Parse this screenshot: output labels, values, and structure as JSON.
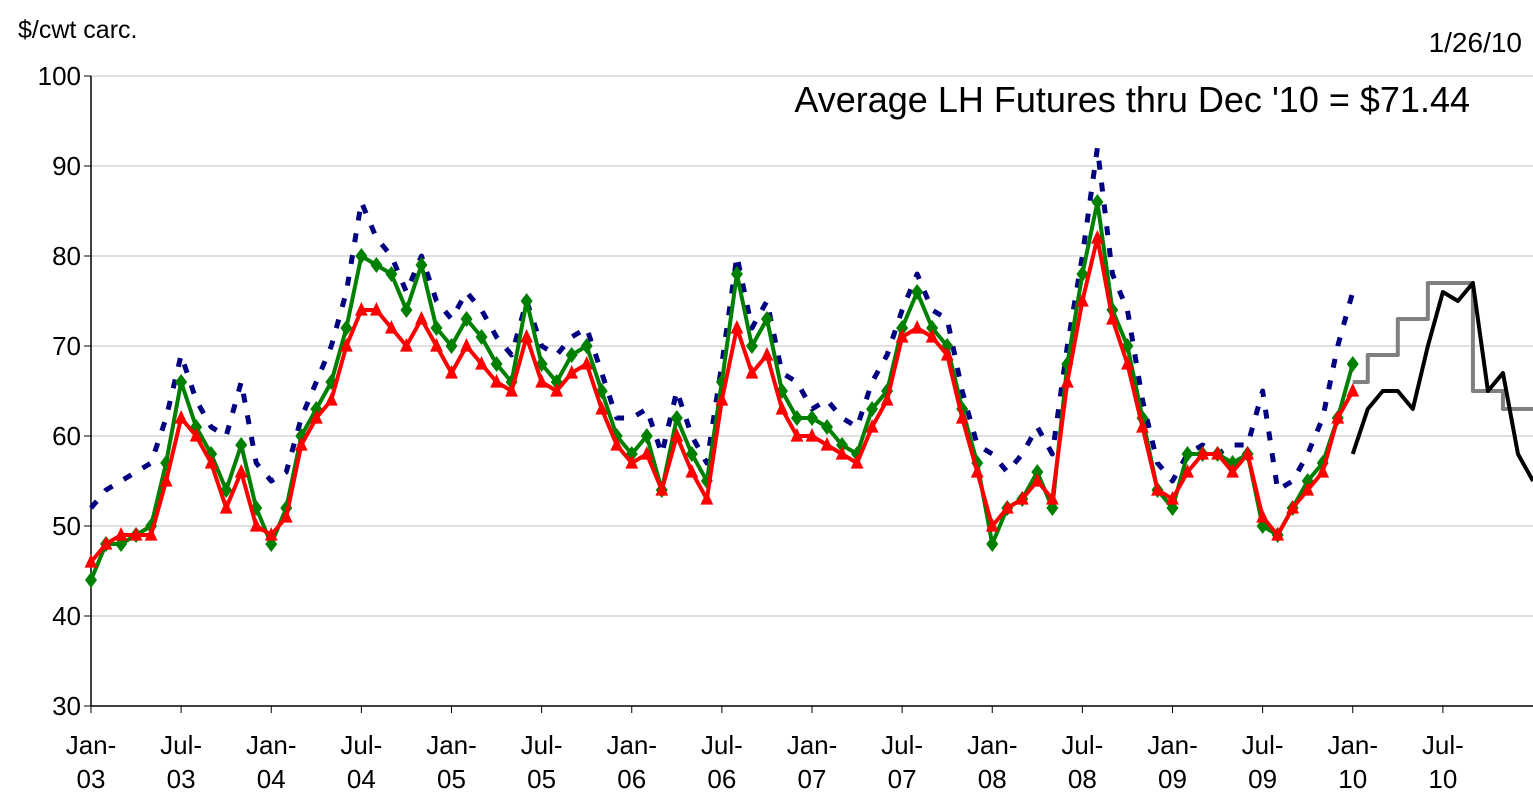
{
  "chart_data": {
    "type": "line",
    "ylabel": "$/cwt carc.",
    "date": "1/26/10",
    "annotation": "Average LH Futures thru Dec '10 = $71.44",
    "categories": [
      "Jan-03",
      null,
      null,
      null,
      null,
      null,
      "Jul-03",
      null,
      null,
      null,
      null,
      null,
      "Jan-04",
      null,
      null,
      null,
      null,
      null,
      "Jul-04",
      null,
      null,
      null,
      null,
      null,
      "Jan-05",
      null,
      null,
      null,
      null,
      null,
      "Jul-05",
      null,
      null,
      null,
      null,
      null,
      "Jan-06",
      null,
      null,
      null,
      null,
      null,
      "Jul-06",
      null,
      null,
      null,
      null,
      null,
      "Jan-07",
      null,
      null,
      null,
      null,
      null,
      "Jul-07",
      null,
      null,
      null,
      null,
      null,
      "Jan-08",
      null,
      null,
      null,
      null,
      null,
      "Jul-08",
      null,
      null,
      null,
      null,
      null,
      "Jan-09",
      null,
      null,
      null,
      null,
      null,
      "Jul-09",
      null,
      null,
      null,
      null,
      null,
      "Jan-10",
      null,
      null,
      null,
      null,
      null,
      "Jul-10",
      null,
      null,
      null,
      null,
      null,
      null
    ],
    "ylim": [
      30,
      100
    ],
    "yticks": [
      30,
      40,
      50,
      60,
      70,
      80,
      90,
      100
    ],
    "grid": true,
    "series": [
      {
        "color": "#000080",
        "style": "dashed",
        "values": [
          52,
          54,
          55,
          56,
          57,
          62,
          69,
          64,
          61,
          60,
          66,
          57,
          55,
          56,
          62,
          66,
          70,
          76,
          86,
          82,
          80,
          76,
          80,
          75,
          73,
          76,
          74,
          71,
          69,
          75,
          70,
          69,
          71,
          72,
          67,
          62,
          62,
          63,
          58,
          65,
          60,
          57,
          68,
          80,
          72,
          75,
          67,
          66,
          63,
          64,
          62,
          61,
          66,
          69,
          74,
          78,
          74,
          73,
          65,
          59,
          58,
          56,
          58,
          61,
          58,
          70,
          80,
          92,
          78,
          74,
          64,
          57,
          55,
          58,
          59,
          58,
          59,
          59,
          65,
          54,
          55,
          58,
          62,
          70,
          76,
          null,
          null,
          null,
          null,
          null,
          null,
          null,
          null,
          null,
          null,
          null,
          null
        ]
      },
      {
        "color": "#008000",
        "marker": "diamond",
        "values": [
          44,
          48,
          48,
          49,
          50,
          57,
          66,
          61,
          58,
          54,
          59,
          52,
          48,
          52,
          60,
          63,
          66,
          72,
          80,
          79,
          78,
          74,
          79,
          72,
          70,
          73,
          71,
          68,
          66,
          75,
          68,
          66,
          69,
          70,
          65,
          60,
          58,
          60,
          54,
          62,
          58,
          55,
          66,
          78,
          70,
          73,
          65,
          62,
          62,
          61,
          59,
          58,
          63,
          65,
          72,
          76,
          72,
          70,
          63,
          57,
          48,
          52,
          53,
          56,
          52,
          68,
          78,
          86,
          74,
          70,
          62,
          54,
          52,
          58,
          58,
          58,
          57,
          58,
          50,
          49,
          52,
          55,
          57,
          62,
          68,
          null,
          null,
          null,
          null,
          null,
          null,
          null,
          null,
          null,
          null,
          null,
          null
        ]
      },
      {
        "color": "#ff0000",
        "marker": "triangle",
        "values": [
          46,
          48,
          49,
          49,
          49,
          55,
          62,
          60,
          57,
          52,
          56,
          50,
          49,
          51,
          59,
          62,
          64,
          70,
          74,
          74,
          72,
          70,
          73,
          70,
          67,
          70,
          68,
          66,
          65,
          71,
          66,
          65,
          67,
          68,
          63,
          59,
          57,
          58,
          54,
          60,
          56,
          53,
          64,
          72,
          67,
          69,
          63,
          60,
          60,
          59,
          58,
          57,
          61,
          64,
          71,
          72,
          71,
          69,
          62,
          56,
          50,
          52,
          53,
          55,
          53,
          66,
          75,
          82,
          73,
          68,
          61,
          54,
          53,
          56,
          58,
          58,
          56,
          58,
          51,
          49,
          52,
          54,
          56,
          62,
          65,
          null,
          null,
          null,
          null,
          null,
          null,
          null,
          null,
          null,
          null,
          null,
          null
        ]
      },
      {
        "color": "#808080",
        "step": true,
        "values": [
          null,
          null,
          null,
          null,
          null,
          null,
          null,
          null,
          null,
          null,
          null,
          null,
          null,
          null,
          null,
          null,
          null,
          null,
          null,
          null,
          null,
          null,
          null,
          null,
          null,
          null,
          null,
          null,
          null,
          null,
          null,
          null,
          null,
          null,
          null,
          null,
          null,
          null,
          null,
          null,
          null,
          null,
          null,
          null,
          null,
          null,
          null,
          null,
          null,
          null,
          null,
          null,
          null,
          null,
          null,
          null,
          null,
          null,
          null,
          null,
          null,
          null,
          null,
          null,
          null,
          null,
          null,
          null,
          null,
          null,
          null,
          null,
          null,
          null,
          null,
          null,
          null,
          null,
          null,
          null,
          null,
          null,
          null,
          null,
          66,
          69,
          69,
          73,
          73,
          77,
          77,
          77,
          65,
          65,
          63,
          63,
          63
        ]
      },
      {
        "color": "#000000",
        "values": [
          null,
          null,
          null,
          null,
          null,
          null,
          null,
          null,
          null,
          null,
          null,
          null,
          null,
          null,
          null,
          null,
          null,
          null,
          null,
          null,
          null,
          null,
          null,
          null,
          null,
          null,
          null,
          null,
          null,
          null,
          null,
          null,
          null,
          null,
          null,
          null,
          null,
          null,
          null,
          null,
          null,
          null,
          null,
          null,
          null,
          null,
          null,
          null,
          null,
          null,
          null,
          null,
          null,
          null,
          null,
          null,
          null,
          null,
          null,
          null,
          null,
          null,
          null,
          null,
          null,
          null,
          null,
          null,
          null,
          null,
          null,
          null,
          null,
          null,
          null,
          null,
          null,
          null,
          null,
          null,
          null,
          null,
          null,
          null,
          58,
          63,
          65,
          65,
          63,
          70,
          76,
          75,
          77,
          65,
          67,
          58,
          55
        ]
      }
    ]
  }
}
